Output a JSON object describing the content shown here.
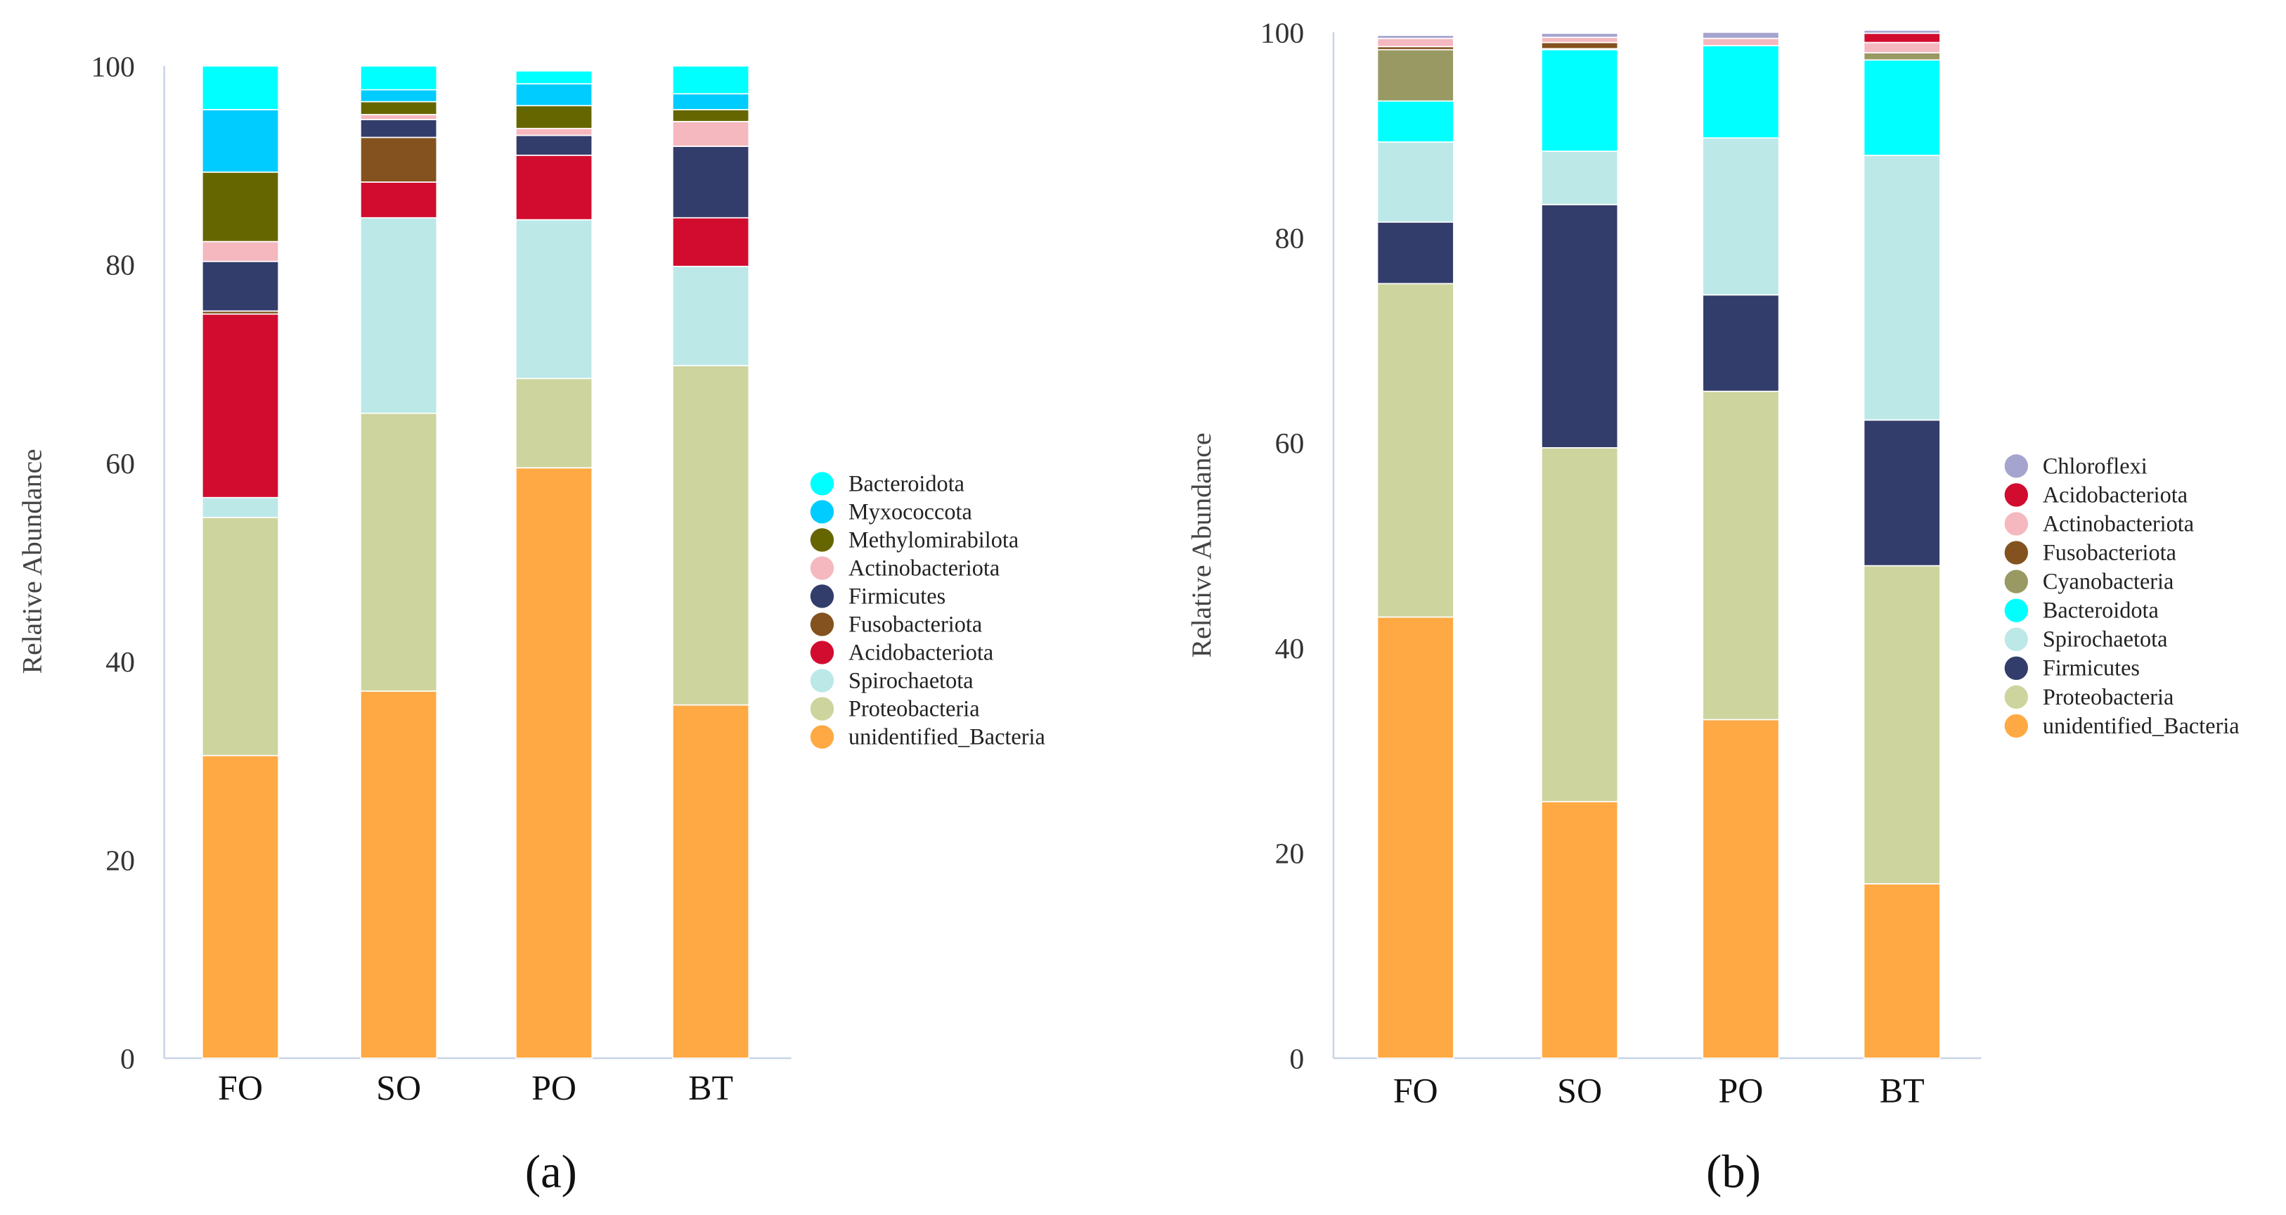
{
  "chart_data": [
    {
      "type": "bar",
      "stacked": true,
      "caption": "(a)",
      "ylabel": "Relative Abundance",
      "xlabel": "",
      "ylim": [
        0,
        100
      ],
      "yticks": [
        "0",
        "20",
        "40",
        "60",
        "80",
        "100"
      ],
      "categories": [
        "FO",
        "SO",
        "PO",
        "BT"
      ],
      "legend_position": "right",
      "series": [
        {
          "name": "unidentified_Bacteria",
          "color": "#FFA944",
          "values": [
            30.5,
            37.0,
            59.5,
            35.6
          ]
        },
        {
          "name": "Proteobacteria",
          "color": "#CDD49D",
          "values": [
            24.0,
            28.0,
            9.0,
            34.2
          ]
        },
        {
          "name": "Spirochaetota",
          "color": "#BCE8E8",
          "values": [
            2.0,
            19.7,
            16.0,
            10.0
          ]
        },
        {
          "name": "Acidobacteriota",
          "color": "#D10C2F",
          "values": [
            18.5,
            3.6,
            6.5,
            4.9
          ]
        },
        {
          "name": "Fusobacteriota",
          "color": "#84521F",
          "values": [
            0.3,
            4.5,
            0.0,
            0.0
          ]
        },
        {
          "name": "Firmicutes",
          "color": "#333D6B",
          "values": [
            5.0,
            1.8,
            2.0,
            7.2
          ]
        },
        {
          "name": "Actinobacteriota",
          "color": "#F4B8BE",
          "values": [
            2.0,
            0.5,
            0.7,
            2.5
          ]
        },
        {
          "name": "Methylomirabilota",
          "color": "#666600",
          "values": [
            7.0,
            1.3,
            2.3,
            1.2
          ]
        },
        {
          "name": "Myxococcota",
          "color": "#00CCFF",
          "values": [
            6.3,
            1.2,
            2.2,
            1.6
          ]
        },
        {
          "name": "Bacteroidota",
          "color": "#00FFFF",
          "values": [
            4.4,
            2.4,
            1.3,
            2.8
          ]
        }
      ]
    },
    {
      "type": "bar",
      "stacked": true,
      "caption": "(b)",
      "ylabel": "Relative Abundance",
      "xlabel": "",
      "ylim": [
        0,
        100
      ],
      "yticks": [
        "0",
        "20",
        "40",
        "60",
        "80",
        "100"
      ],
      "categories": [
        "FO",
        "SO",
        "PO",
        "BT"
      ],
      "legend_position": "right",
      "series": [
        {
          "name": "unidentified_Bacteria",
          "color": "#FFA944",
          "values": [
            43.0,
            25.0,
            33.0,
            17.0
          ]
        },
        {
          "name": "Proteobacteria",
          "color": "#CDD49D",
          "values": [
            32.5,
            34.5,
            32.0,
            31.0
          ]
        },
        {
          "name": "Firmicutes",
          "color": "#333D6B",
          "values": [
            6.0,
            23.7,
            9.4,
            14.2
          ]
        },
        {
          "name": "Spirochaetota",
          "color": "#BCE8E8",
          "values": [
            7.8,
            5.2,
            15.3,
            25.8
          ]
        },
        {
          "name": "Bacteroidota",
          "color": "#00FFFF",
          "values": [
            4.0,
            9.9,
            9.0,
            9.3
          ]
        },
        {
          "name": "Cyanobacteria",
          "color": "#999963",
          "values": [
            5.0,
            0.1,
            0.0,
            0.7
          ]
        },
        {
          "name": "Fusobacteriota",
          "color": "#84521F",
          "values": [
            0.3,
            0.6,
            0.0,
            0.0
          ]
        },
        {
          "name": "Actinobacteriota",
          "color": "#F4B8BE",
          "values": [
            0.8,
            0.5,
            0.7,
            1.0
          ]
        },
        {
          "name": "Acidobacteriota",
          "color": "#D10C2F",
          "values": [
            0.0,
            0.0,
            0.0,
            0.9
          ]
        },
        {
          "name": "Chloroflexi",
          "color": "#A4A4CE",
          "values": [
            0.3,
            0.4,
            0.6,
            0.3
          ]
        }
      ]
    }
  ]
}
